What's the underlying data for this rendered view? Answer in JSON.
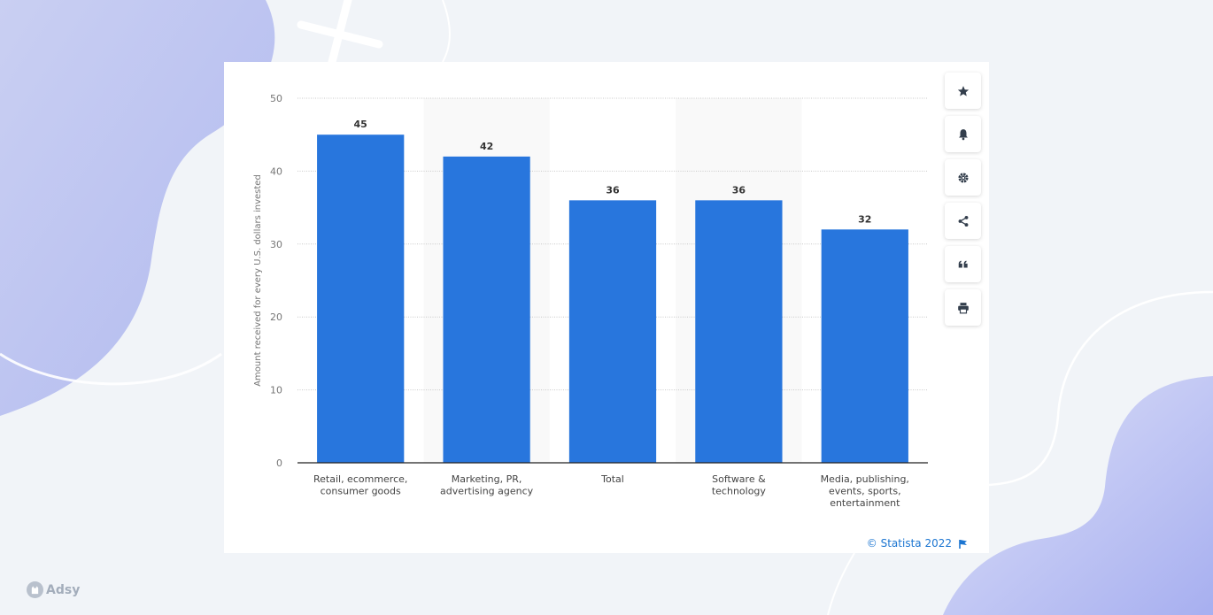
{
  "chart_data": {
    "type": "bar",
    "categories": [
      [
        "Retail, ecommerce,",
        "consumer goods"
      ],
      [
        "Marketing, PR,",
        "advertising agency"
      ],
      [
        "Total"
      ],
      [
        "Software &",
        "technology"
      ],
      [
        "Media, publishing,",
        "events, sports,",
        "entertainment"
      ]
    ],
    "values": [
      45,
      42,
      36,
      36,
      32
    ],
    "ylabel": "Amount received for every U.S. dollars invested",
    "ylim": [
      0,
      50
    ],
    "yticks": [
      0,
      10,
      20,
      30,
      40,
      50
    ],
    "grid": true,
    "bar_color": "#2876dd"
  },
  "toolbar": {
    "buttons": [
      "star-icon",
      "bell-icon",
      "gear-icon",
      "share-icon",
      "quote-icon",
      "print-icon"
    ]
  },
  "credit": {
    "text": "© Statista 2022"
  },
  "brand": {
    "name": "Adsy"
  }
}
